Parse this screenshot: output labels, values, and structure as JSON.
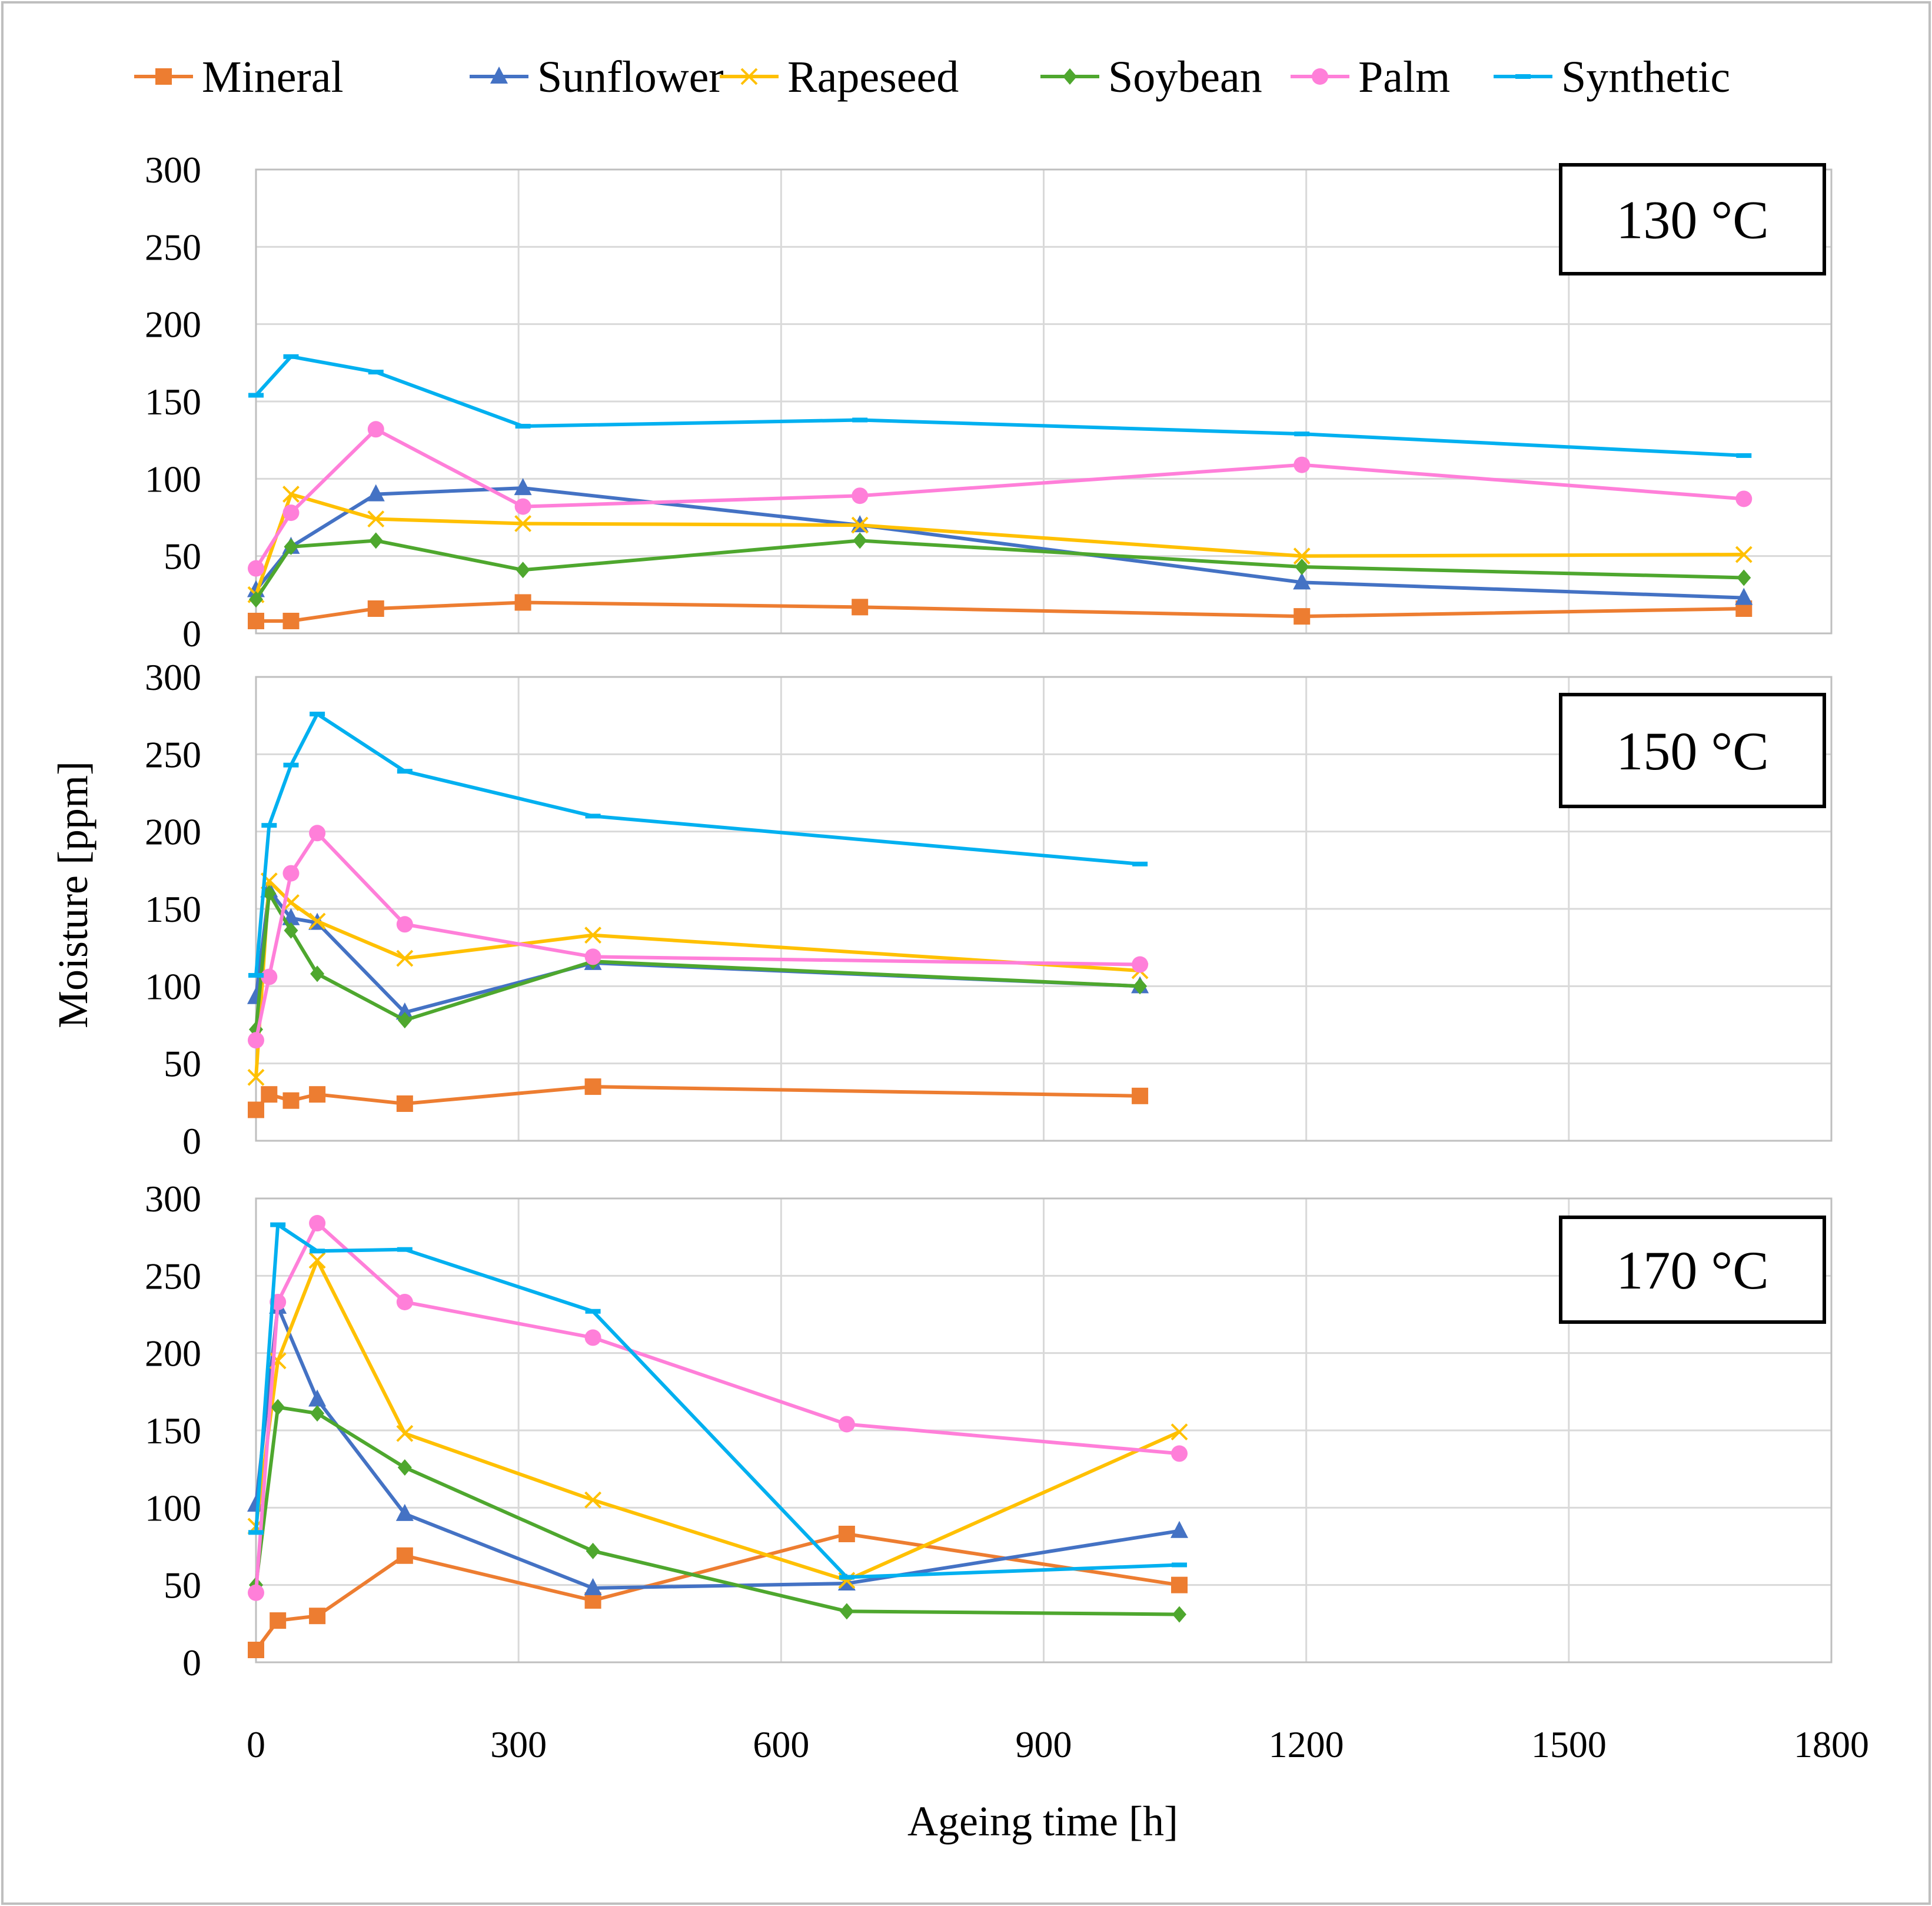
{
  "figure": {
    "x_axis_label": "Ageing time [h]",
    "y_axis_label": "Moisture [ppm]"
  },
  "legend": [
    {
      "name": "Mineral",
      "marker": "square"
    },
    {
      "name": "Sunflower",
      "marker": "triangle"
    },
    {
      "name": "Rapeseed",
      "marker": "x"
    },
    {
      "name": "Soybean",
      "marker": "diamond"
    },
    {
      "name": "Palm",
      "marker": "circle"
    },
    {
      "name": "Synthetic",
      "marker": "dash"
    }
  ],
  "colors": {
    "Mineral": "#ED7D31",
    "Sunflower": "#4472C4",
    "Rapeseed": "#FFC000",
    "Soybean": "#4EA72E",
    "Palm": "#FF7FD9",
    "Synthetic": "#00B0F0",
    "grid": "#D9D9D9",
    "frame": "#BFBFBF"
  },
  "chart_data": [
    {
      "type": "line",
      "title": "130 °C",
      "xlabel": "Ageing time [h]",
      "ylabel": "Moisture [ppm]",
      "xlim": [
        0,
        1800
      ],
      "ylim": [
        0,
        300
      ],
      "xticks": [
        "0",
        "300",
        "600",
        "900",
        "1200",
        "1500",
        "1800"
      ],
      "yticks": [
        "0",
        "50",
        "100",
        "150",
        "200",
        "250",
        "300"
      ],
      "series": [
        {
          "name": "Mineral",
          "x": [
            0,
            40,
            137,
            305,
            690,
            1195,
            1700
          ],
          "values": [
            8,
            8,
            16,
            20,
            17,
            11,
            16
          ]
        },
        {
          "name": "Sunflower",
          "x": [
            0,
            40,
            137,
            305,
            690,
            1195,
            1700
          ],
          "values": [
            28,
            56,
            90,
            94,
            70,
            33,
            23
          ]
        },
        {
          "name": "Rapeseed",
          "x": [
            0,
            40,
            137,
            305,
            690,
            1195,
            1700
          ],
          "values": [
            25,
            90,
            74,
            71,
            70,
            50,
            51
          ]
        },
        {
          "name": "Soybean",
          "x": [
            0,
            40,
            137,
            305,
            690,
            1195,
            1700
          ],
          "values": [
            22,
            56,
            60,
            41,
            60,
            43,
            36
          ]
        },
        {
          "name": "Palm",
          "x": [
            0,
            40,
            137,
            305,
            690,
            1195,
            1700
          ],
          "values": [
            42,
            78,
            132,
            82,
            89,
            109,
            87
          ]
        },
        {
          "name": "Synthetic",
          "x": [
            0,
            40,
            137,
            305,
            690,
            1195,
            1700
          ],
          "values": [
            154,
            179,
            169,
            134,
            138,
            129,
            115
          ]
        }
      ]
    },
    {
      "type": "line",
      "title": "150 °C",
      "xlabel": "Ageing time [h]",
      "ylabel": "Moisture [ppm]",
      "xlim": [
        0,
        1800
      ],
      "ylim": [
        0,
        300
      ],
      "xticks": [
        "0",
        "300",
        "600",
        "900",
        "1200",
        "1500",
        "1800"
      ],
      "yticks": [
        "0",
        "50",
        "100",
        "150",
        "200",
        "250",
        "300"
      ],
      "series": [
        {
          "name": "Mineral",
          "x": [
            0,
            15,
            40,
            70,
            170,
            385,
            1010
          ],
          "values": [
            20,
            30,
            26,
            30,
            24,
            35,
            29
          ]
        },
        {
          "name": "Sunflower",
          "x": [
            0,
            15,
            40,
            70,
            170,
            385,
            1010
          ],
          "values": [
            93,
            162,
            144,
            141,
            83,
            115,
            100
          ]
        },
        {
          "name": "Rapeseed",
          "x": [
            0,
            15,
            40,
            70,
            170,
            385,
            1010
          ],
          "values": [
            41,
            168,
            154,
            142,
            118,
            133,
            110
          ]
        },
        {
          "name": "Soybean",
          "x": [
            0,
            15,
            40,
            70,
            170,
            385,
            1010
          ],
          "values": [
            72,
            160,
            136,
            108,
            78,
            116,
            100
          ]
        },
        {
          "name": "Palm",
          "x": [
            0,
            15,
            40,
            70,
            170,
            385,
            1010
          ],
          "values": [
            65,
            106,
            173,
            199,
            140,
            119,
            114
          ]
        },
        {
          "name": "Synthetic",
          "x": [
            0,
            15,
            40,
            70,
            170,
            385,
            1010
          ],
          "values": [
            107,
            204,
            243,
            276,
            239,
            210,
            179
          ]
        }
      ]
    },
    {
      "type": "line",
      "title": "170 °C",
      "xlabel": "Ageing time [h]",
      "ylabel": "Moisture [ppm]",
      "xlim": [
        0,
        1800
      ],
      "ylim": [
        0,
        300
      ],
      "xticks": [
        "0",
        "300",
        "600",
        "900",
        "1200",
        "1500",
        "1800"
      ],
      "yticks": [
        "0",
        "50",
        "100",
        "150",
        "200",
        "250",
        "300"
      ],
      "series": [
        {
          "name": "Mineral",
          "x": [
            0,
            25,
            70,
            170,
            385,
            675,
            1055
          ],
          "values": [
            8,
            27,
            30,
            69,
            40,
            83,
            50
          ]
        },
        {
          "name": "Sunflower",
          "x": [
            0,
            25,
            70,
            170,
            385,
            675,
            1055
          ],
          "values": [
            102,
            230,
            170,
            96,
            48,
            51,
            85
          ]
        },
        {
          "name": "Rapeseed",
          "x": [
            0,
            25,
            70,
            170,
            385,
            675,
            1055
          ],
          "values": [
            88,
            195,
            260,
            148,
            105,
            53,
            149
          ]
        },
        {
          "name": "Soybean",
          "x": [
            0,
            25,
            70,
            170,
            385,
            675,
            1055
          ],
          "values": [
            50,
            165,
            161,
            126,
            72,
            33,
            31
          ]
        },
        {
          "name": "Palm",
          "x": [
            0,
            25,
            70,
            170,
            385,
            675,
            1055
          ],
          "values": [
            45,
            233,
            284,
            233,
            210,
            154,
            135
          ]
        },
        {
          "name": "Synthetic",
          "x": [
            0,
            25,
            70,
            170,
            385,
            675,
            1055
          ],
          "values": [
            84,
            283,
            266,
            267,
            227,
            55,
            63
          ]
        }
      ]
    }
  ]
}
